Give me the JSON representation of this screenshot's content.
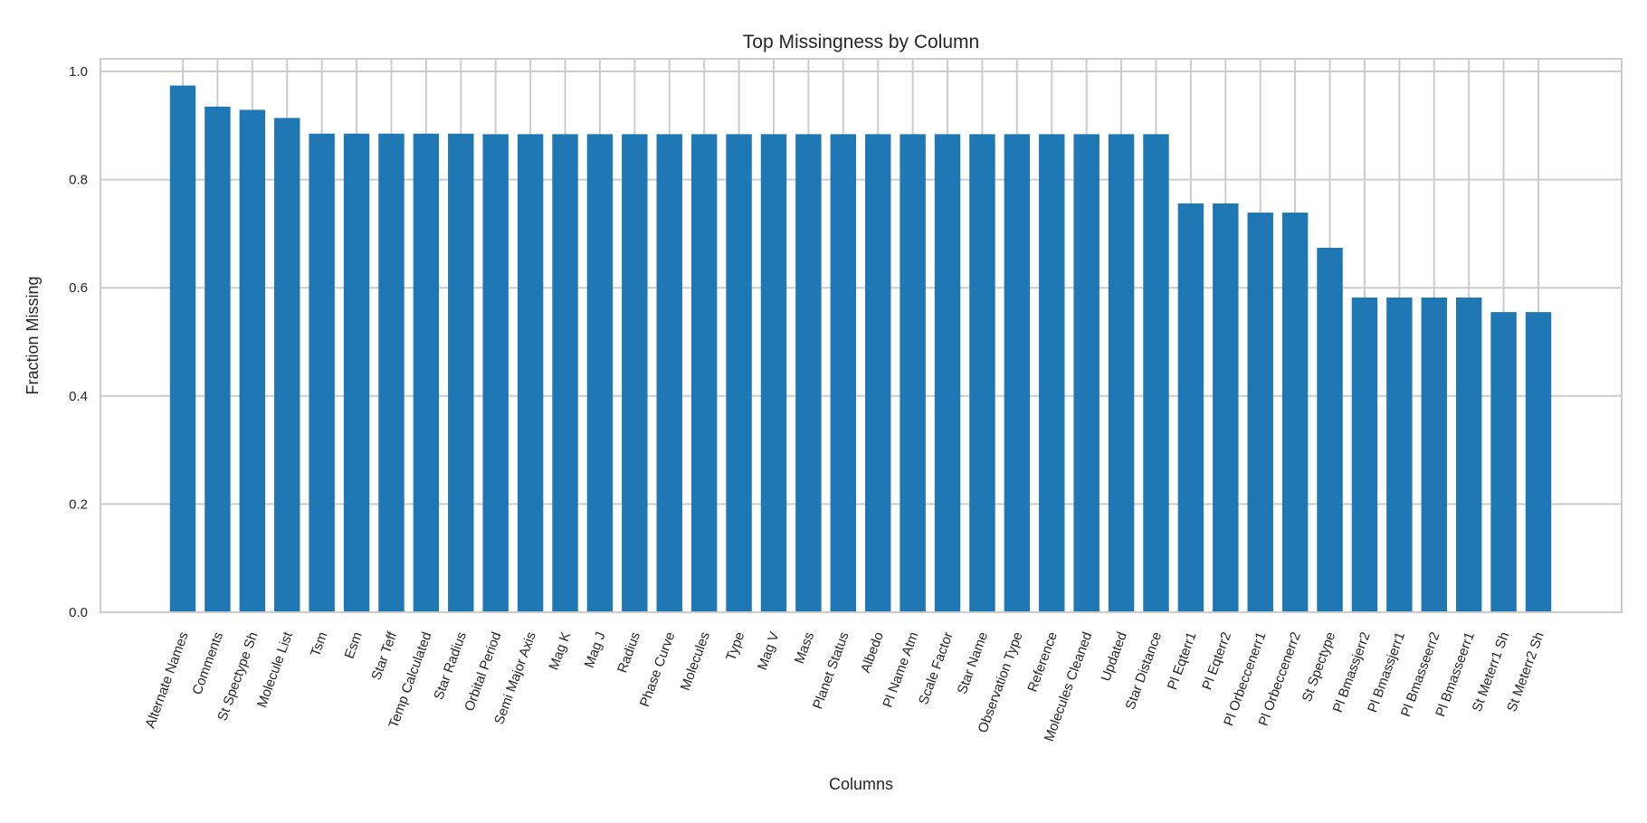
{
  "chart_data": {
    "type": "bar",
    "title": "Top Missingness by Column",
    "xlabel": "Columns",
    "ylabel": "Fraction Missing",
    "ylim": [
      0,
      1.0
    ],
    "yticks": [
      0.0,
      0.2,
      0.4,
      0.6,
      0.8,
      1.0
    ],
    "ytick_labels": [
      "0.0",
      "0.2",
      "0.4",
      "0.6",
      "0.8",
      "1.0"
    ],
    "grid": true,
    "bar_color": "#1f77b4",
    "grid_color": "#cccccc",
    "categories": [
      "Alternate Names",
      "Comments",
      "St Spectype Sh",
      "Molecule List",
      "Tsm",
      "Esm",
      "Star Teff",
      "Temp Calculated",
      "Star Radius",
      "Orbital Period",
      "Semi Major Axis",
      "Mag K",
      "Mag J",
      "Radius",
      "Phase Curve",
      "Molecules",
      "Type",
      "Mag V",
      "Mass",
      "Planet Status",
      "Albedo",
      "Pl Name Atm",
      "Scale Factor",
      "Star Name",
      "Observation Type",
      "Reference",
      "Molecules Cleaned",
      "Updated",
      "Star Distance",
      "Pl Eqterr1",
      "Pl Eqterr2",
      "Pl Orbeccenerr1",
      "Pl Orbeccenerr2",
      "St Spectype",
      "Pl Bmassjerr2",
      "Pl Bmassjerr1",
      "Pl Bmasseerr2",
      "Pl Bmasseerr1",
      "St Meterr1 Sh",
      "St Meterr2 Sh"
    ],
    "values": [
      0.974,
      0.935,
      0.929,
      0.914,
      0.885,
      0.885,
      0.885,
      0.885,
      0.885,
      0.884,
      0.884,
      0.884,
      0.884,
      0.884,
      0.884,
      0.884,
      0.884,
      0.884,
      0.884,
      0.884,
      0.884,
      0.884,
      0.884,
      0.884,
      0.884,
      0.884,
      0.884,
      0.884,
      0.884,
      0.756,
      0.756,
      0.739,
      0.739,
      0.674,
      0.582,
      0.582,
      0.582,
      0.582,
      0.555,
      0.555
    ]
  }
}
